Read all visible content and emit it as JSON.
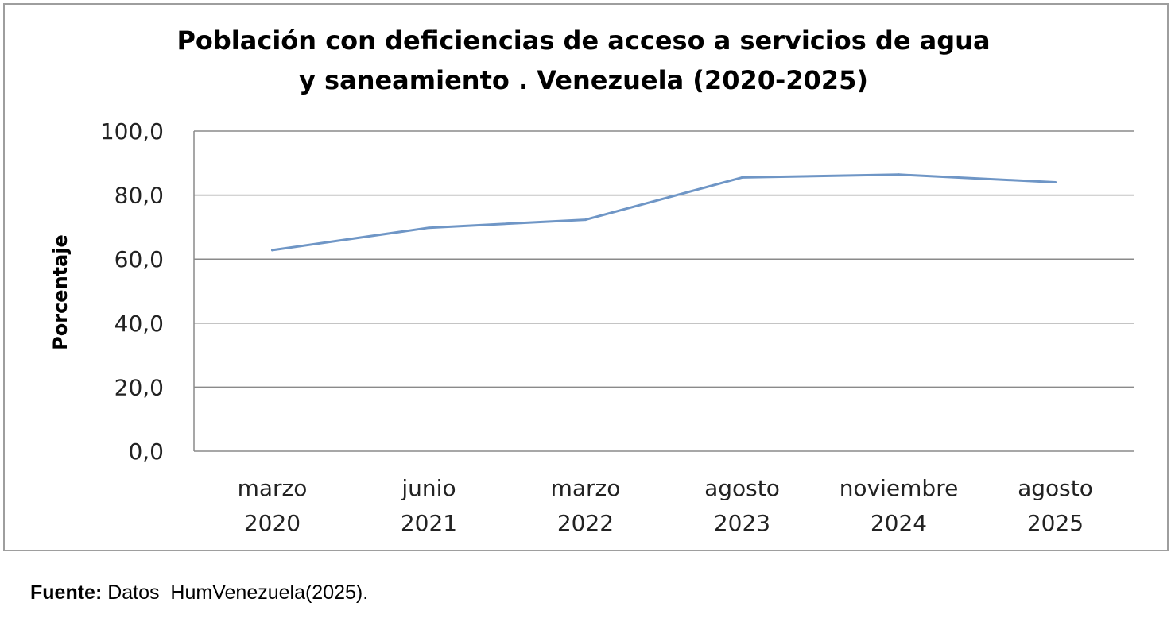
{
  "chart_data": {
    "type": "line",
    "title_lines": [
      "Población con deficiencias de acceso a servicios de agua",
      "y saneamiento . Venezuela (2020-2025)"
    ],
    "ylabel": "Porcentaje",
    "xlabel": "",
    "categories": [
      [
        "marzo",
        "2020"
      ],
      [
        "junio",
        "2021"
      ],
      [
        "marzo",
        "2022"
      ],
      [
        "agosto",
        "2023"
      ],
      [
        "noviembre",
        "2024"
      ],
      [
        "agosto",
        "2025"
      ]
    ],
    "series": [
      {
        "name": "Porcentaje",
        "values": [
          62.8,
          69.8,
          72.3,
          85.5,
          86.4,
          84.0
        ]
      }
    ],
    "ylim": [
      0,
      100
    ],
    "yticks": [
      "0,0",
      "20,0",
      "40,0",
      "60,0",
      "80,0",
      "100,0"
    ],
    "grid": true,
    "legend": "none",
    "line_color": "#6f96c6"
  },
  "source": {
    "label": "Fuente:",
    "text": " Datos  HumVenezuela(2025)."
  }
}
